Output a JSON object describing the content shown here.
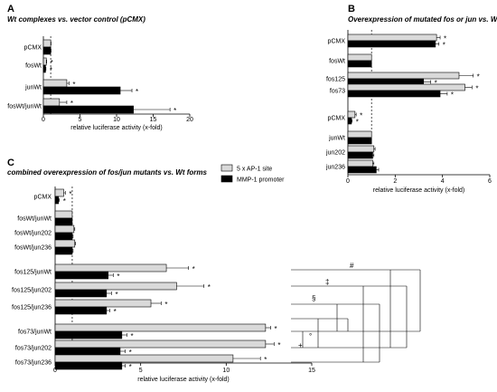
{
  "colors": {
    "series1": "#d9d9d9",
    "series2": "#000000",
    "stroke": "#000000"
  },
  "legend": [
    {
      "label": "5 x AP-1 site",
      "color": "#d9d9d9"
    },
    {
      "label": "MMP-1 promoter",
      "color": "#000000"
    }
  ],
  "chart_data": [
    {
      "panel": "A",
      "type": "bar",
      "orientation": "horizontal",
      "title": "Wt complexes vs. vector control (pCMX)",
      "xlabel": "relative luciferase activity (x-fold)",
      "xlim": [
        0,
        20
      ],
      "xticks": [
        "0",
        "5",
        "10",
        "15",
        "20"
      ],
      "reference_line": 1,
      "categories": [
        "pCMX",
        "fosWt",
        "junWt",
        "fosWt/junWt"
      ],
      "series": [
        {
          "name": "5 x AP-1 site",
          "values": [
            1.0,
            0.4,
            3.2,
            2.2
          ],
          "errors": [
            0.05,
            0.05,
            0.3,
            1.0
          ]
        },
        {
          "name": "MMP-1 promoter",
          "values": [
            1.0,
            0.3,
            10.5,
            12.3
          ],
          "errors": [
            0.05,
            0.05,
            1.6,
            5.0
          ]
        }
      ],
      "significance": [
        [
          "",
          ""
        ],
        [
          "*",
          "*"
        ],
        [
          "*",
          "*"
        ],
        [
          "*",
          "*"
        ]
      ]
    },
    {
      "panel": "B",
      "type": "bar",
      "orientation": "horizontal",
      "title": "Overexpression of mutated fos or jun vs. Wt forms",
      "xlabel": "relative luciferase activity (x-fold)",
      "xlim": [
        0,
        6
      ],
      "xticks": [
        "0",
        "2",
        "4",
        "6"
      ],
      "reference_line": 1,
      "categories": [
        "pCMX",
        "fosWt",
        "fos125",
        "fos73",
        "pCMX",
        "junWt",
        "jun202",
        "jun236"
      ],
      "series": [
        {
          "name": "5 x AP-1 site",
          "values": [
            3.75,
            1.0,
            4.7,
            4.95,
            0.3,
            1.0,
            1.1,
            1.05
          ],
          "errors": [
            0.15,
            0,
            0.6,
            0.3,
            0.05,
            0,
            0.05,
            0.05
          ]
        },
        {
          "name": "MMP-1 promoter",
          "values": [
            3.7,
            1.0,
            3.2,
            3.9,
            0.15,
            1.0,
            1.05,
            1.2
          ],
          "errors": [
            0.15,
            0,
            0.3,
            0.3,
            0.03,
            0,
            0.05,
            0.1
          ]
        }
      ],
      "significance": [
        [
          "*",
          "*"
        ],
        [
          "",
          ""
        ],
        [
          "*",
          "*"
        ],
        [
          "*",
          "*"
        ],
        [
          "*",
          "*"
        ],
        [
          "",
          ""
        ],
        [
          "",
          ""
        ],
        [
          "",
          ""
        ]
      ]
    },
    {
      "panel": "C",
      "type": "bar",
      "orientation": "horizontal",
      "title": "combined overexpression of fos/jun mutants vs. Wt forms",
      "xlabel": "relative luciferase activity (x-fold)",
      "xlim": [
        0,
        15
      ],
      "xticks": [
        "0",
        "5",
        "10",
        "15"
      ],
      "reference_line": 1,
      "categories": [
        "pCMX",
        "fosWt/junWt",
        "fosWt/jun202",
        "fosWt/jun236",
        "fos125/junWt",
        "fos125/jun202",
        "fos125/jun236",
        "fos73/junWt",
        "fos73/jun202",
        "fos73/jun236"
      ],
      "series": [
        {
          "name": "5 x AP-1 site",
          "values": [
            0.5,
            1.0,
            1.1,
            1.15,
            6.5,
            7.1,
            5.6,
            12.3,
            12.3,
            10.4
          ],
          "errors": [
            0.1,
            0,
            0.05,
            0.05,
            1.3,
            1.6,
            0.6,
            0.3,
            0.5,
            1.6
          ]
        },
        {
          "name": "MMP-1 promoter",
          "values": [
            0.2,
            1.0,
            1.0,
            1.0,
            3.1,
            3.0,
            3.0,
            3.9,
            3.8,
            3.9
          ],
          "errors": [
            0.05,
            0,
            0.05,
            0.05,
            0.3,
            0.3,
            0.2,
            0.3,
            0.3,
            0.2
          ]
        }
      ],
      "significance": [
        [
          "*",
          "*"
        ],
        [
          "",
          ""
        ],
        [
          "",
          ""
        ],
        [
          "",
          ""
        ],
        [
          "*",
          "*"
        ],
        [
          "*",
          "*"
        ],
        [
          "*",
          "*"
        ],
        [
          "*",
          "*"
        ],
        [
          "*",
          "*"
        ],
        [
          "*",
          "*"
        ]
      ],
      "bracket_symbols": [
        "#",
        "‡",
        "§",
        "°",
        "+"
      ]
    }
  ]
}
